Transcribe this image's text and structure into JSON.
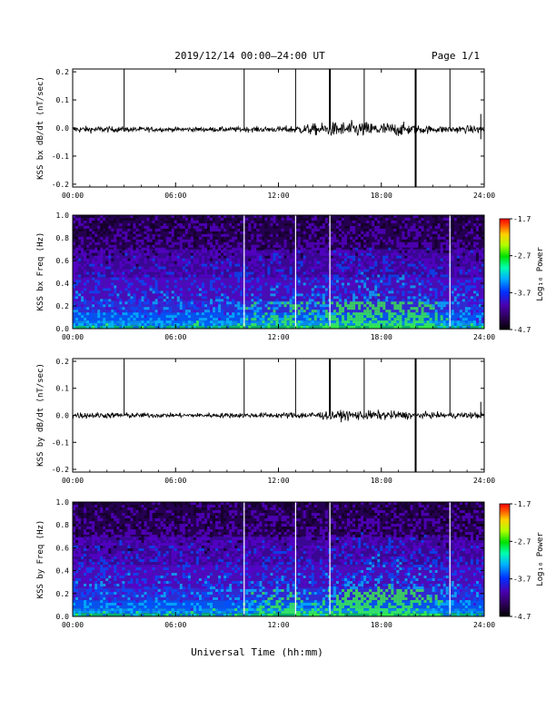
{
  "header": {
    "title": "2019/12/14  00:00–24:00 UT",
    "page": "Page 1/1"
  },
  "footer": {
    "xlabel": "Universal Time (hh:mm)"
  },
  "colors": {
    "trace": "#000000",
    "spike": "#000000",
    "marker": "#ffffff"
  },
  "colorbar": {
    "label": "Log₁₀ Power",
    "ticks": [
      "-1.7",
      "-2.7",
      "-3.7",
      "-4.7"
    ],
    "range": [
      -4.7,
      -1.7
    ]
  },
  "chart_data": [
    {
      "type": "line",
      "ylabel": "KSS bx dB/dt (nT/sec)",
      "xticks": [
        "00:00",
        "06:00",
        "12:00",
        "18:00",
        "24:00"
      ],
      "yticks": [
        "0.2",
        "0.1",
        "0.0",
        "-0.1",
        "-0.2"
      ],
      "xlim": [
        0,
        24
      ],
      "ylim": [
        -0.21,
        0.21
      ],
      "baseline": -0.005,
      "noise_profile": [
        [
          0,
          0.006
        ],
        [
          6,
          0.004
        ],
        [
          12,
          0.005
        ],
        [
          14,
          0.01
        ],
        [
          16,
          0.014
        ],
        [
          19,
          0.012
        ],
        [
          21,
          0.006
        ],
        [
          24,
          0.007
        ]
      ],
      "spikes": [
        {
          "t": 3.0,
          "ymin": -0.005,
          "ymax": 0.21
        },
        {
          "t": 10.0,
          "ymin": -0.005,
          "ymax": 0.21
        },
        {
          "t": 13.0,
          "ymin": -0.005,
          "ymax": 0.21
        },
        {
          "t": 15.0,
          "ymin": -0.005,
          "ymax": 0.21
        },
        {
          "t": 17.0,
          "ymin": -0.005,
          "ymax": 0.21
        },
        {
          "t": 20.0,
          "ymin": -0.21,
          "ymax": 0.21
        },
        {
          "t": 22.0,
          "ymin": -0.005,
          "ymax": 0.21
        },
        {
          "t": 23.8,
          "ymin": -0.04,
          "ymax": 0.05
        }
      ]
    },
    {
      "type": "heatmap",
      "ylabel": "KSS bx Freq (Hz)",
      "xticks": [
        "00:00",
        "06:00",
        "12:00",
        "18:00",
        "24:00"
      ],
      "yticks": [
        "1.0",
        "0.8",
        "0.6",
        "0.4",
        "0.2",
        "0.0"
      ],
      "xlim": [
        0,
        24
      ],
      "ylim": [
        0,
        1.0
      ],
      "zlim": [
        -4.7,
        -1.7
      ],
      "markers": [
        10.0,
        13.0,
        15.0,
        22.0
      ]
    },
    {
      "type": "line",
      "ylabel": "KSS by dB/dt (nT/sec)",
      "xticks": [
        "00:00",
        "06:00",
        "12:00",
        "18:00",
        "24:00"
      ],
      "yticks": [
        "0.2",
        "0.1",
        "0.0",
        "-0.1",
        "-0.2"
      ],
      "xlim": [
        0,
        24
      ],
      "ylim": [
        -0.21,
        0.21
      ],
      "baseline": 0.0,
      "noise_profile": [
        [
          0,
          0.006
        ],
        [
          6,
          0.004
        ],
        [
          12,
          0.005
        ],
        [
          14,
          0.007
        ],
        [
          16,
          0.009
        ],
        [
          19,
          0.008
        ],
        [
          21,
          0.005
        ],
        [
          24,
          0.006
        ]
      ],
      "spikes": [
        {
          "t": 3.0,
          "ymin": 0.0,
          "ymax": 0.21
        },
        {
          "t": 10.0,
          "ymin": 0.0,
          "ymax": 0.21
        },
        {
          "t": 13.0,
          "ymin": 0.0,
          "ymax": 0.21
        },
        {
          "t": 15.0,
          "ymin": 0.0,
          "ymax": 0.21
        },
        {
          "t": 17.0,
          "ymin": 0.0,
          "ymax": 0.21
        },
        {
          "t": 20.0,
          "ymin": -0.21,
          "ymax": 0.21
        },
        {
          "t": 22.0,
          "ymin": 0.0,
          "ymax": 0.21
        },
        {
          "t": 23.8,
          "ymin": -0.01,
          "ymax": 0.05
        }
      ]
    },
    {
      "type": "heatmap",
      "ylabel": "KSS by Freq (Hz)",
      "xticks": [
        "00:00",
        "06:00",
        "12:00",
        "18:00",
        "24:00"
      ],
      "yticks": [
        "1.0",
        "0.8",
        "0.6",
        "0.4",
        "0.2",
        "0.0"
      ],
      "xlim": [
        0,
        24
      ],
      "ylim": [
        0,
        1.0
      ],
      "zlim": [
        -4.7,
        -1.7
      ],
      "markers": [
        10.0,
        13.0,
        15.0,
        22.0
      ]
    }
  ]
}
